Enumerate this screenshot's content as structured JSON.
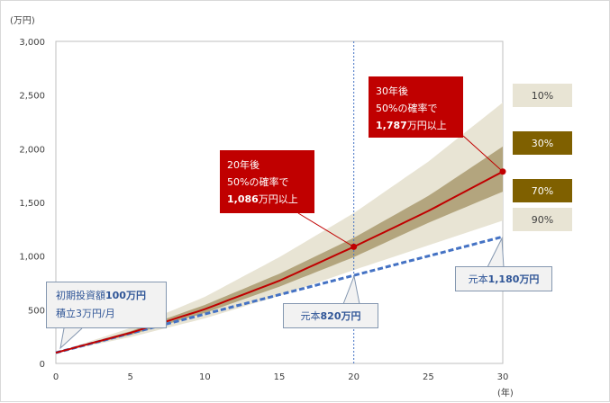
{
  "chart_data": {
    "type": "area",
    "x_unit": "(年)",
    "y_unit": "(万円)",
    "xlim": [
      0,
      30
    ],
    "ylim": [
      0,
      3000
    ],
    "x_ticks": [
      "0",
      "5",
      "10",
      "15",
      "20",
      "25",
      "30"
    ],
    "y_ticks": [
      "0",
      "500",
      "1,000",
      "1,500",
      "2,000",
      "2,500",
      "3,000"
    ],
    "grid": false,
    "x": [
      0,
      5,
      10,
      15,
      20,
      25,
      30
    ],
    "bands": [
      {
        "name": "10%",
        "role": "upper_outer",
        "color": "#e8e4d4",
        "values": [
          100,
          330,
          620,
          990,
          1400,
          1880,
          2430
        ]
      },
      {
        "name": "30%",
        "role": "upper_inner",
        "color": "#b3a57e",
        "values": [
          100,
          300,
          545,
          835,
          1170,
          1560,
          2020
        ]
      },
      {
        "name": "70%",
        "role": "lower_inner",
        "color": "#b3a57e",
        "values": [
          100,
          265,
          470,
          715,
          990,
          1310,
          1600
        ]
      },
      {
        "name": "90%",
        "role": "lower_outer",
        "color": "#e8e4d4",
        "values": [
          100,
          245,
          420,
          630,
          870,
          1100,
          1330
        ]
      }
    ],
    "series": [
      {
        "name": "median",
        "color": "#c00000",
        "values": [
          100,
          285,
          505,
          770,
          1086,
          1420,
          1787
        ]
      },
      {
        "name": "principal",
        "color": "#4472c4",
        "values": [
          100,
          280,
          460,
          640,
          820,
          1000,
          1180
        ]
      }
    ],
    "markers": [
      {
        "x": 20,
        "y": 1086
      },
      {
        "x": 30,
        "y": 1787
      }
    ],
    "reference_line": {
      "x": 20
    }
  },
  "callouts": {
    "c20": {
      "line1": "20年後",
      "line2": "50%の確率で",
      "value": "1,086",
      "suffix": "万円以上"
    },
    "c30": {
      "line1": "30年後",
      "line2": "50%の確率で",
      "value": "1,787",
      "suffix": "万円以上"
    }
  },
  "legend": [
    {
      "label": "10%",
      "bg": "#e8e4d4",
      "fg": "#404040"
    },
    {
      "label": "30%",
      "bg": "#7f6000",
      "fg": "#ffffff"
    },
    {
      "label": "70%",
      "bg": "#7f6000",
      "fg": "#ffffff"
    },
    {
      "label": "90%",
      "bg": "#e8e4d4",
      "fg": "#404040"
    }
  ],
  "notes": {
    "initial_prefix": "初期投資額",
    "initial_value": "100万円",
    "monthly": "積立3万円/月",
    "p20_prefix": "元本",
    "p20_value": "820万円",
    "p30_prefix": "元本",
    "p30_value": "1,180万円"
  }
}
